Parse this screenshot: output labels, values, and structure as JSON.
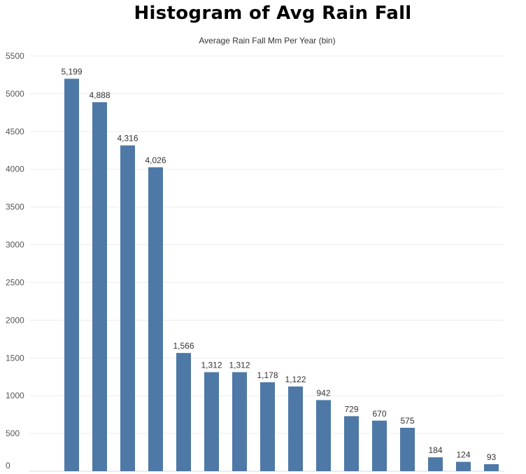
{
  "colors": {
    "bar": "#4e79a7",
    "grid": "#ececec",
    "axis": "#d9d9d9"
  },
  "chart_data": {
    "type": "bar",
    "title": "Histogram of Avg Rain Fall",
    "subtitle": "Average Rain Fall Mm Per Year (bin)",
    "xlabel": "Average Rain Fall Mm Per Year (bin)",
    "ylabel": "",
    "ylim": [
      0,
      5500
    ],
    "yticks": [
      0,
      500,
      1000,
      1500,
      2000,
      2500,
      3000,
      3500,
      4000,
      4500,
      5000,
      5500
    ],
    "grid": true,
    "values": [
      5199,
      4888,
      4316,
      4026,
      1566,
      1312,
      1312,
      1178,
      1122,
      942,
      729,
      670,
      575,
      184,
      124,
      93
    ],
    "value_labels": [
      "5,199",
      "4,888",
      "4,316",
      "4,026",
      "1,566",
      "1,312",
      "1,312",
      "1,178",
      "1,122",
      "942",
      "729",
      "670",
      "575",
      "184",
      "124",
      "93"
    ]
  }
}
